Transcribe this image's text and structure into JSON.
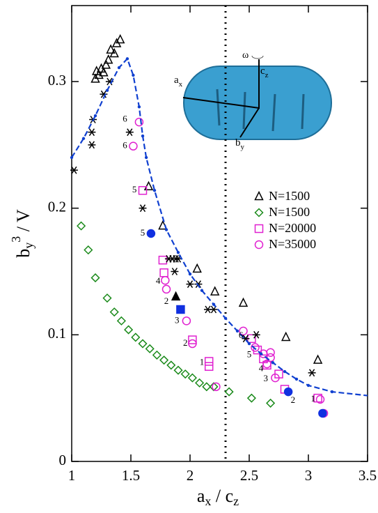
{
  "chart_data": {
    "type": "scatter",
    "xlabel": [
      "a",
      "x",
      " / c",
      "z"
    ],
    "ylabel": [
      "b",
      "y",
      "3",
      " / V"
    ],
    "xlim": [
      1,
      3.5
    ],
    "xticks": [
      1,
      1.5,
      2,
      2.5,
      3,
      3.5
    ],
    "ylim": [
      0,
      0.36
    ],
    "yticks": [
      0,
      0.1,
      0.2,
      0.3
    ],
    "vline": 2.3,
    "legend": "right",
    "inset_labels": {
      "omega": "ω",
      "a": "a",
      "a_sub": "x",
      "c": "c",
      "c_sub": "z",
      "b": "b",
      "b_sub": "y"
    },
    "series": [
      {
        "name": "N=1500",
        "marker": "triangle",
        "filled": false,
        "color": "#000000",
        "x": [
          1.2,
          1.21,
          1.23,
          1.25,
          1.27,
          1.29,
          1.31,
          1.33,
          1.36,
          1.38,
          1.41,
          1.65,
          1.77,
          2.06,
          2.21,
          2.45,
          2.81,
          3.08
        ],
        "y": [
          0.302,
          0.308,
          0.305,
          0.31,
          0.307,
          0.313,
          0.317,
          0.325,
          0.322,
          0.33,
          0.333,
          0.217,
          0.186,
          0.152,
          0.134,
          0.125,
          0.098,
          0.08
        ]
      },
      {
        "name": "N=1500",
        "marker": "diamond",
        "filled": false,
        "color": "#1a8a1a",
        "x": [
          1.08,
          1.14,
          1.2,
          1.3,
          1.36,
          1.42,
          1.48,
          1.54,
          1.6,
          1.66,
          1.72,
          1.78,
          1.84,
          1.9,
          1.96,
          2.02,
          2.08,
          2.14,
          2.2,
          2.33,
          2.52,
          2.68
        ],
        "y": [
          0.186,
          0.167,
          0.145,
          0.129,
          0.118,
          0.111,
          0.104,
          0.098,
          0.093,
          0.089,
          0.084,
          0.08,
          0.076,
          0.072,
          0.069,
          0.066,
          0.062,
          0.059,
          0.059,
          0.055,
          0.05,
          0.046
        ]
      },
      {
        "name": "N=20000",
        "marker": "square",
        "filled": false,
        "color": "#e020d0",
        "x": [
          1.6,
          1.77,
          1.78,
          2.02,
          2.16,
          2.16,
          2.52,
          2.57,
          2.62,
          2.65,
          2.75,
          2.8,
          3.08
        ],
        "y": [
          0.214,
          0.159,
          0.149,
          0.096,
          0.079,
          0.075,
          0.097,
          0.088,
          0.081,
          0.076,
          0.069,
          0.057,
          0.05
        ]
      },
      {
        "name": "N=35000",
        "marker": "circle",
        "filled": false,
        "color": "#e020d0",
        "x": [
          1.57,
          1.52,
          1.79,
          1.8,
          1.97,
          2.02,
          2.22,
          2.45,
          2.55,
          2.62,
          2.68,
          2.68,
          2.65,
          2.72,
          3.1,
          3.13
        ],
        "y": [
          0.268,
          0.249,
          0.143,
          0.136,
          0.111,
          0.093,
          0.059,
          0.103,
          0.09,
          0.085,
          0.086,
          0.082,
          0.077,
          0.066,
          0.049,
          0.038
        ]
      },
      {
        "marker": "star",
        "filled": false,
        "color": "#000000",
        "x": [
          1.02,
          1.17,
          1.17,
          1.18,
          1.27,
          1.32,
          1.49,
          1.6,
          1.82,
          1.85,
          1.88,
          1.87,
          1.9,
          2.0,
          2.07,
          2.15,
          2.2,
          2.56,
          2.47,
          3.03
        ],
        "y": [
          0.23,
          0.25,
          0.26,
          0.27,
          0.29,
          0.3,
          0.26,
          0.2,
          0.16,
          0.16,
          0.16,
          0.15,
          0.16,
          0.14,
          0.14,
          0.12,
          0.12,
          0.1,
          0.097,
          0.07
        ]
      },
      {
        "marker": "triangle",
        "filled": true,
        "color": "#000000",
        "x": [
          1.88
        ],
        "y": [
          0.13
        ]
      },
      {
        "marker": "square",
        "filled": true,
        "color": "#1030e0",
        "x": [
          1.92
        ],
        "y": [
          0.12
        ]
      },
      {
        "marker": "circle",
        "filled": true,
        "color": "#1030e0",
        "x": [
          1.67,
          2.83,
          3.12
        ],
        "y": [
          0.18,
          0.055,
          0.038
        ]
      },
      {
        "marker": "line",
        "color": "#1040d0",
        "x": [
          1.0,
          1.1,
          1.2,
          1.3,
          1.4,
          1.47,
          1.52,
          1.57,
          1.6,
          1.63,
          1.7,
          1.8,
          1.9,
          2.0,
          2.1,
          2.2,
          2.3,
          2.4,
          2.5,
          2.6,
          2.7,
          2.8,
          2.9,
          3.0,
          3.2,
          3.5
        ],
        "y": [
          0.24,
          0.255,
          0.273,
          0.293,
          0.311,
          0.318,
          0.305,
          0.28,
          0.257,
          0.24,
          0.214,
          0.183,
          0.165,
          0.148,
          0.135,
          0.124,
          0.113,
          0.103,
          0.093,
          0.085,
          0.078,
          0.071,
          0.065,
          0.06,
          0.055,
          0.052
        ]
      }
    ],
    "annotations": [
      {
        "text": "6",
        "x": 1.45,
        "y": 0.27
      },
      {
        "text": "6",
        "x": 1.45,
        "y": 0.249
      },
      {
        "text": "5",
        "x": 1.53,
        "y": 0.214
      },
      {
        "text": "5",
        "x": 1.6,
        "y": 0.18
      },
      {
        "text": "4",
        "x": 1.73,
        "y": 0.142
      },
      {
        "text": "2",
        "x": 1.8,
        "y": 0.126
      },
      {
        "text": "3",
        "x": 1.89,
        "y": 0.111
      },
      {
        "text": "2",
        "x": 1.96,
        "y": 0.093
      },
      {
        "text": "1",
        "x": 2.1,
        "y": 0.078
      },
      {
        "text": "6",
        "x": 2.43,
        "y": 0.099
      },
      {
        "text": "5",
        "x": 2.5,
        "y": 0.084
      },
      {
        "text": "4",
        "x": 2.6,
        "y": 0.073
      },
      {
        "text": "3",
        "x": 2.64,
        "y": 0.065
      },
      {
        "text": "2",
        "x": 2.87,
        "y": 0.048
      },
      {
        "text": "1",
        "x": 3.04,
        "y": 0.049
      }
    ]
  }
}
